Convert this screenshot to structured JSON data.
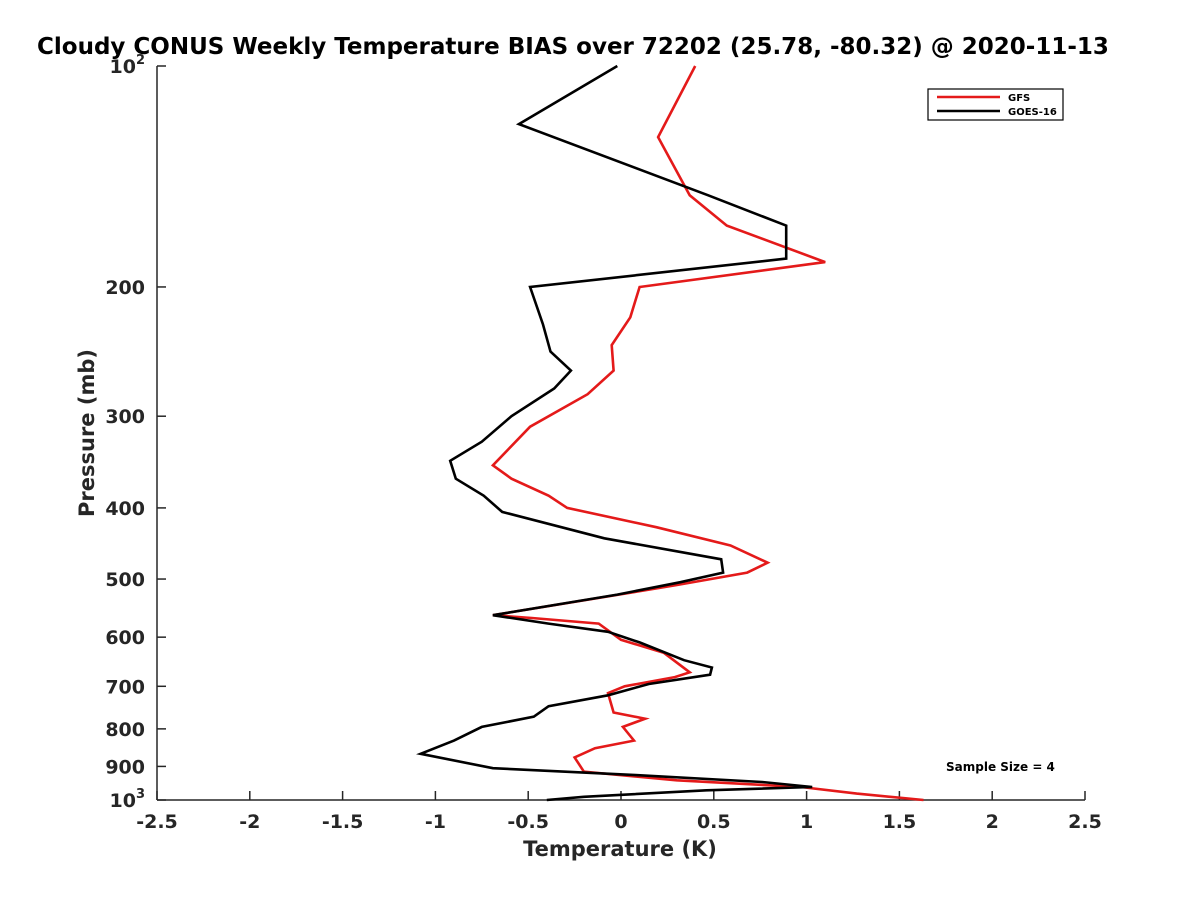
{
  "chart_data": {
    "type": "line",
    "title": "Cloudy CONUS Weekly Temperature BIAS over 72202 (25.78, -80.32) @ 2020-11-13",
    "xlabel": "Temperature (K)",
    "ylabel": "Pressure (mb)",
    "xlim": [
      -2.5,
      2.5
    ],
    "ylim": [
      100,
      1000
    ],
    "y_scale": "log",
    "y_reversed": true,
    "grid": false,
    "legend_position": "top-right",
    "x_ticks": [
      "-2.5",
      "-2",
      "-1.5",
      "-1",
      "-0.5",
      "0",
      "0.5",
      "1",
      "1.5",
      "2",
      "2.5"
    ],
    "x_tick_values": [
      -2.5,
      -2,
      -1.5,
      -1,
      -0.5,
      0,
      0.5,
      1,
      1.5,
      2,
      2.5
    ],
    "y_ticks": [
      {
        "value": 100,
        "base": "10",
        "exp": "2"
      },
      {
        "value": 200,
        "label": "200"
      },
      {
        "value": 300,
        "label": "300"
      },
      {
        "value": 400,
        "label": "400"
      },
      {
        "value": 500,
        "label": "500"
      },
      {
        "value": 600,
        "label": "600"
      },
      {
        "value": 700,
        "label": "700"
      },
      {
        "value": 800,
        "label": "800"
      },
      {
        "value": 900,
        "label": "900"
      },
      {
        "value": 1000,
        "base": "10",
        "exp": "3"
      }
    ],
    "series": [
      {
        "name": "GFS",
        "color": "#e41a1a",
        "points": [
          [
            0.4,
            100
          ],
          [
            0.2,
            125
          ],
          [
            0.37,
            150
          ],
          [
            0.57,
            165
          ],
          [
            1.1,
            185
          ],
          [
            0.1,
            200
          ],
          [
            0.05,
            220
          ],
          [
            -0.05,
            240
          ],
          [
            -0.04,
            260
          ],
          [
            -0.18,
            280
          ],
          [
            -0.49,
            310
          ],
          [
            -0.69,
            350
          ],
          [
            -0.59,
            365
          ],
          [
            -0.39,
            385
          ],
          [
            -0.29,
            400
          ],
          [
            0.19,
            425
          ],
          [
            0.59,
            450
          ],
          [
            0.79,
            475
          ],
          [
            0.68,
            490
          ],
          [
            0.29,
            510
          ],
          [
            -0.69,
            560
          ],
          [
            -0.48,
            565
          ],
          [
            -0.12,
            575
          ],
          [
            0.0,
            605
          ],
          [
            0.23,
            630
          ],
          [
            0.37,
            670
          ],
          [
            0.29,
            680
          ],
          [
            0.02,
            700
          ],
          [
            -0.07,
            715
          ],
          [
            -0.04,
            760
          ],
          [
            0.13,
            775
          ],
          [
            0.01,
            795
          ],
          [
            0.07,
            830
          ],
          [
            -0.14,
            850
          ],
          [
            -0.25,
            875
          ],
          [
            -0.2,
            915
          ],
          [
            0.3,
            940
          ],
          [
            0.97,
            960
          ],
          [
            1.27,
            980
          ],
          [
            1.63,
            1000
          ]
        ]
      },
      {
        "name": "GOES-16",
        "color": "#000000",
        "points": [
          [
            -0.02,
            100
          ],
          [
            -0.55,
            120
          ],
          [
            0.47,
            150
          ],
          [
            0.89,
            165
          ],
          [
            0.89,
            183
          ],
          [
            -0.49,
            200
          ],
          [
            -0.42,
            225
          ],
          [
            -0.38,
            245
          ],
          [
            -0.27,
            260
          ],
          [
            -0.36,
            275
          ],
          [
            -0.59,
            300
          ],
          [
            -0.75,
            325
          ],
          [
            -0.92,
            345
          ],
          [
            -0.89,
            365
          ],
          [
            -0.74,
            385
          ],
          [
            -0.64,
            405
          ],
          [
            -0.09,
            440
          ],
          [
            0.54,
            470
          ],
          [
            0.55,
            490
          ],
          [
            0.32,
            505
          ],
          [
            -0.02,
            525
          ],
          [
            -0.69,
            560
          ],
          [
            -0.39,
            575
          ],
          [
            -0.07,
            590
          ],
          [
            0.1,
            610
          ],
          [
            0.34,
            645
          ],
          [
            0.49,
            660
          ],
          [
            0.48,
            675
          ],
          [
            0.15,
            695
          ],
          [
            -0.07,
            720
          ],
          [
            -0.39,
            745
          ],
          [
            -0.47,
            770
          ],
          [
            -0.75,
            795
          ],
          [
            -0.9,
            830
          ],
          [
            -1.08,
            865
          ],
          [
            -0.69,
            905
          ],
          [
            0.08,
            925
          ],
          [
            0.76,
            945
          ],
          [
            1.03,
            960
          ],
          [
            0.46,
            970
          ],
          [
            -0.2,
            990
          ],
          [
            -0.4,
            1000
          ]
        ]
      }
    ],
    "annotation": "Sample Size = 4"
  }
}
